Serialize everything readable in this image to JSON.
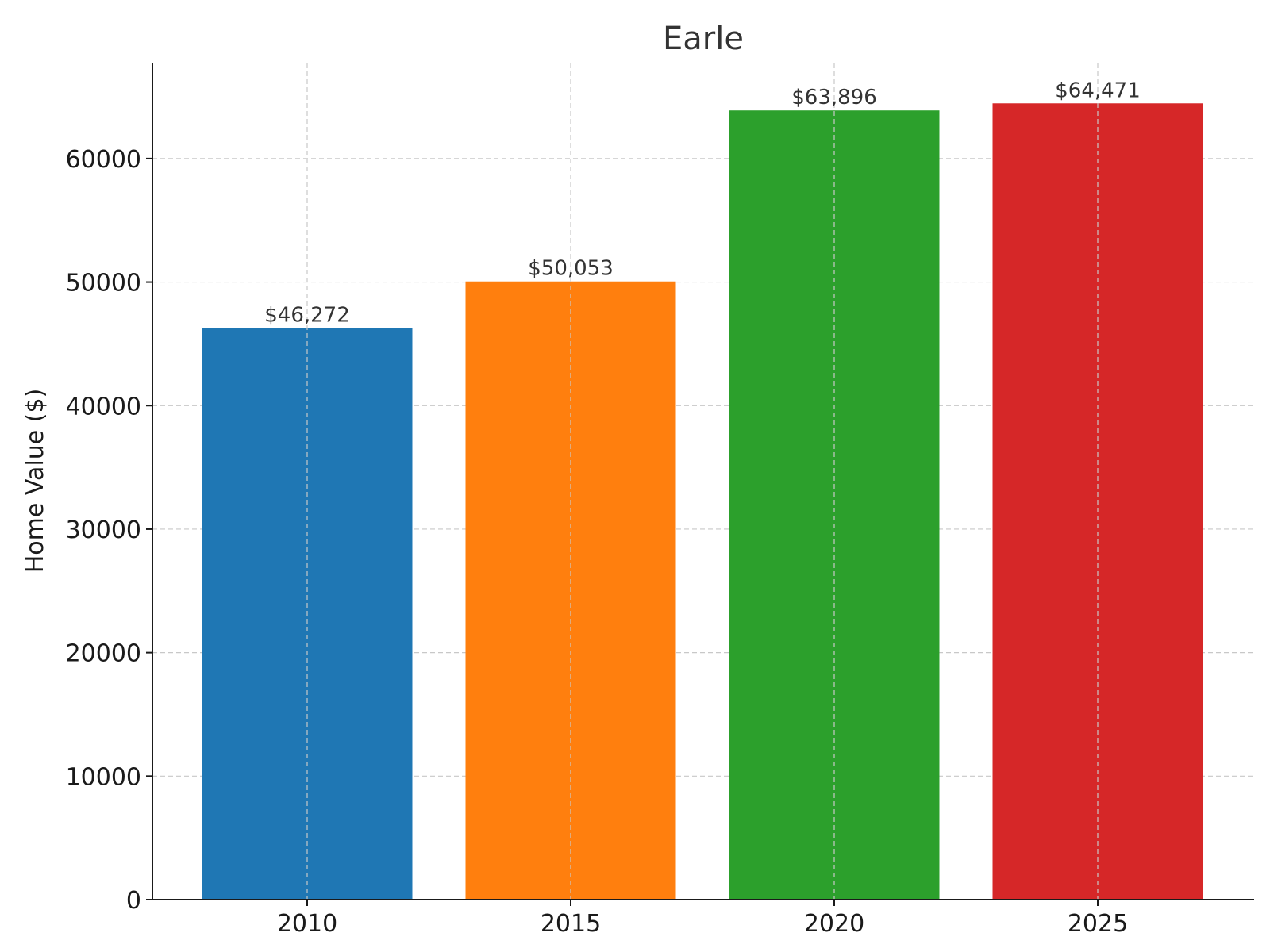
{
  "chart_data": {
    "type": "bar",
    "title": "Earle",
    "xlabel": "",
    "ylabel": "Home Value ($)",
    "categories": [
      "2010",
      "2015",
      "2020",
      "2025"
    ],
    "values": [
      46272,
      50053,
      63896,
      64471
    ],
    "data_labels": [
      "$46,272",
      "$50,053",
      "$63,896",
      "$64,471"
    ],
    "colors": [
      "#1f77b4",
      "#ff7f0e",
      "#2ca02c",
      "#d62728"
    ],
    "y_ticks": [
      0,
      10000,
      20000,
      30000,
      40000,
      50000,
      60000
    ],
    "ylim": [
      0,
      67700
    ],
    "grid": true
  }
}
